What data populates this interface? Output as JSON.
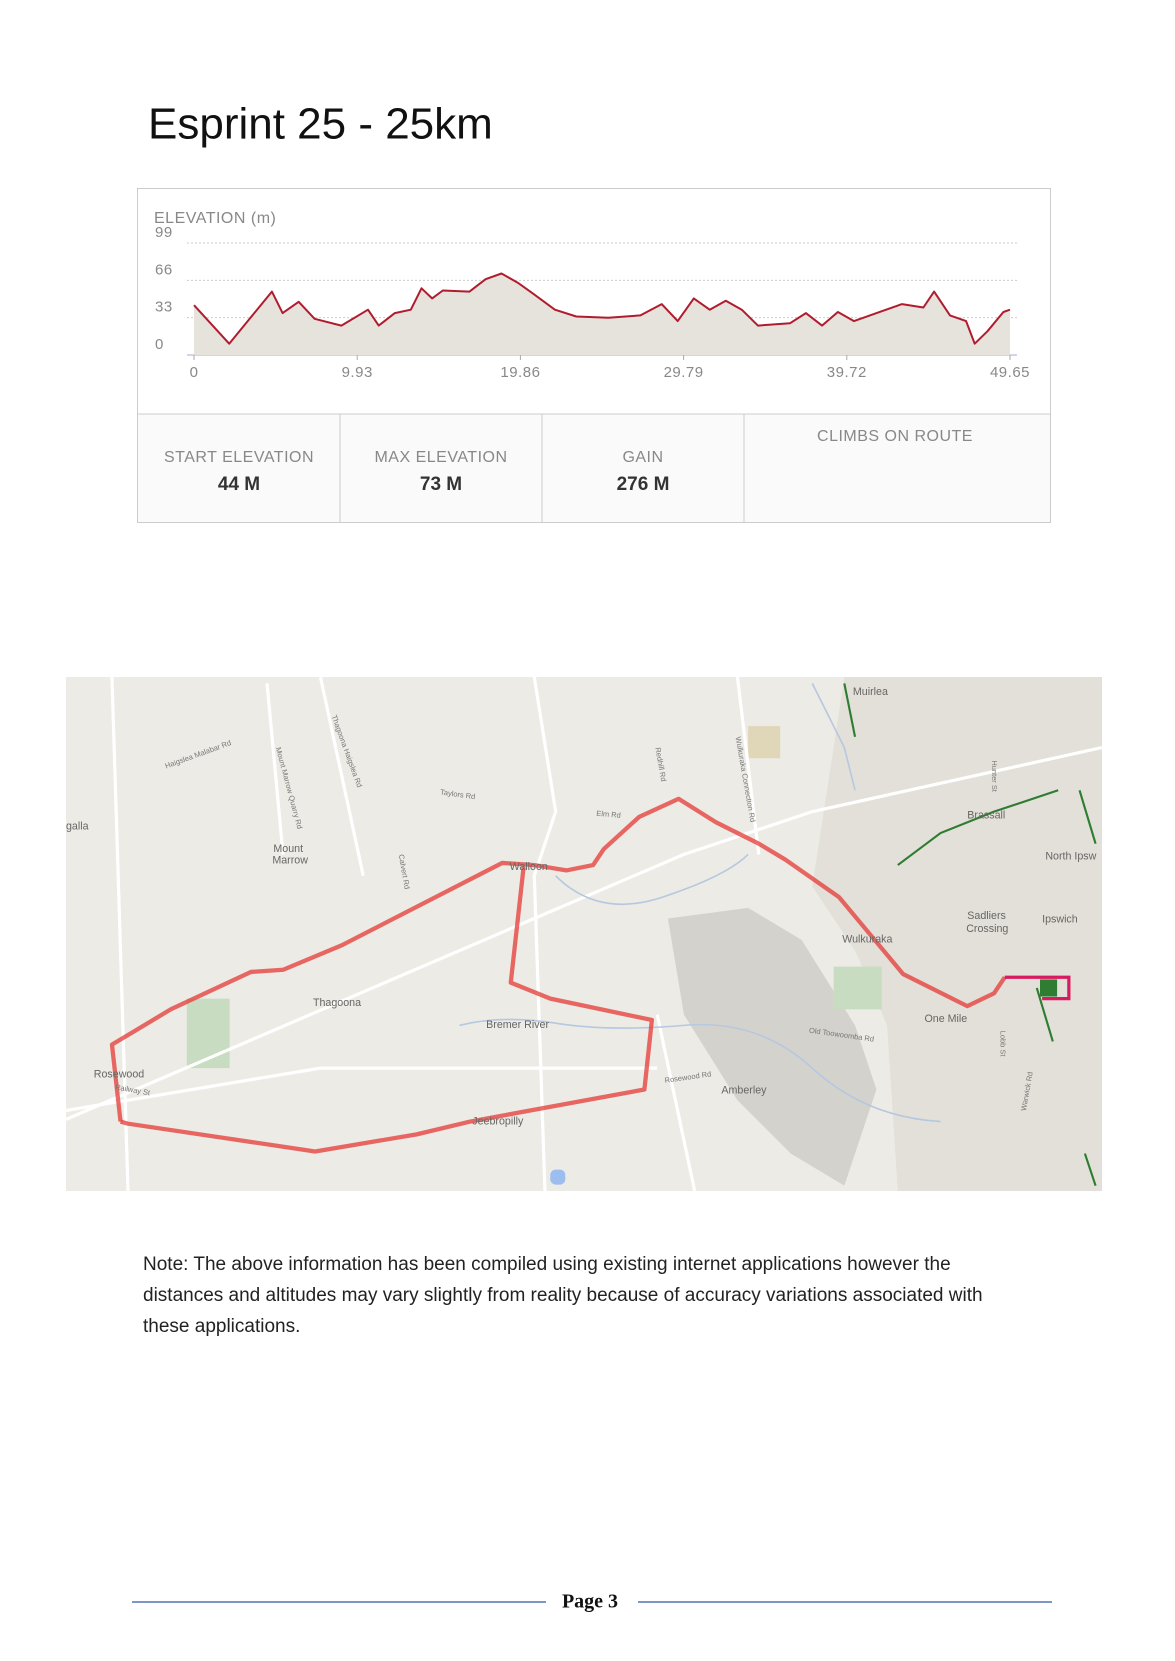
{
  "header": {
    "title": "Esprint 25 - 25km"
  },
  "chart_data": {
    "type": "area",
    "ylabel": "ELEVATION (m)",
    "x": [
      0,
      2.14,
      4.74,
      5.39,
      6.37,
      7.34,
      8.97,
      10.59,
      11.24,
      12.22,
      13.19,
      13.84,
      14.49,
      15.14,
      16.76,
      17.74,
      18.71,
      19.69,
      20.66,
      21.96,
      23.26,
      25.21,
      27.16,
      28.46,
      29.43,
      30.41,
      31.38,
      32.36,
      33.33,
      34.31,
      36.26,
      37.23,
      38.21,
      39.18,
      40.16,
      42.11,
      43.08,
      44.38,
      45.03,
      46.0,
      46.98,
      47.5,
      48.28,
      49.25,
      49.65
    ],
    "values": [
      44,
      10,
      56,
      37,
      47,
      32,
      26,
      40,
      26,
      37,
      40,
      59,
      50,
      57,
      56,
      67,
      72,
      64,
      54,
      40,
      34,
      33,
      35,
      45,
      30,
      50,
      40,
      48,
      40,
      26,
      28,
      37,
      26,
      38,
      30,
      40,
      45,
      42,
      56,
      35,
      30,
      10,
      21,
      38,
      40
    ],
    "color": "#b01c2e",
    "fill": "#e6e3dc",
    "xlim": [
      0,
      49.65
    ],
    "xticks": [
      0,
      9.93,
      19.86,
      29.79,
      39.72,
      49.65
    ],
    "ylim": [
      0,
      99
    ],
    "yticks": [
      0,
      33,
      66,
      99
    ],
    "grid": true
  },
  "stats": [
    {
      "label": "START ELEVATION",
      "value": "44 M"
    },
    {
      "label": "MAX ELEVATION",
      "value": "73 M"
    },
    {
      "label": "GAIN",
      "value": "276 M"
    }
  ],
  "climbs": {
    "label": "CLIMBS ON ROUTE"
  },
  "map": {
    "places": [
      "Muirlea",
      "Brassall",
      "North Ipsw",
      "Ipswich",
      "Sadliers",
      "Crossing",
      "Wulkuraka",
      "One Mile",
      "Amberley",
      "Thagoona",
      "Rosewood",
      "Mount",
      "Marrow",
      "Walloon",
      "Bremer River",
      "Jeebropilly",
      "galla"
    ],
    "roads": [
      "Taylors Rd",
      "Elm Rd",
      "Redhill Rd",
      "Wulkuraka Connection Rd",
      "Haigslea Malabar Rd",
      "Mount Marrow Quarry Rd",
      "Thagoona Haigslea Rd",
      "Calvert Rd",
      "Rosewood Rd",
      "Old Toowoomba Rd",
      "Lobb St",
      "Warwick Rd",
      "Railway St",
      "Hunter St"
    ]
  },
  "note": {
    "lines": [
      "Note:   The above information has been compiled using existing internet applications however the",
      "distances and altitudes may vary slightly from reality because of accuracy variations associated with",
      "these applications."
    ]
  },
  "footer": {
    "page": "Page 3"
  }
}
